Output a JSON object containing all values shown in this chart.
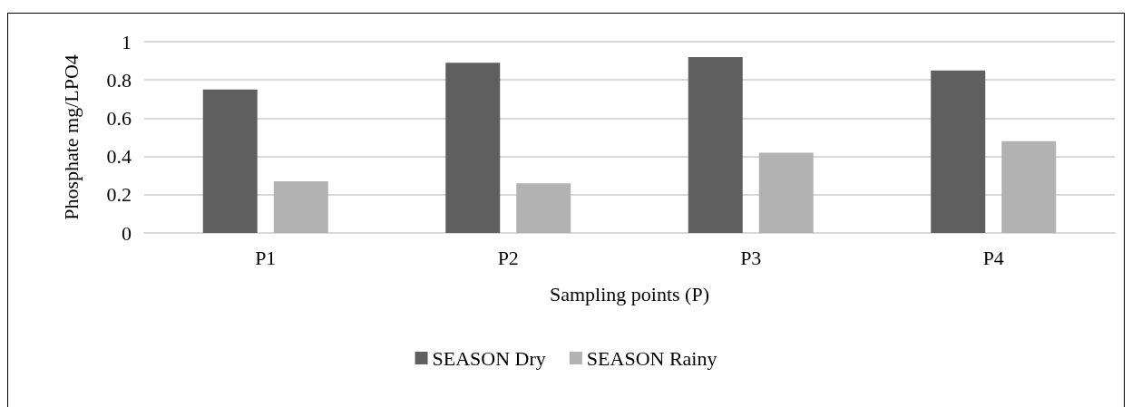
{
  "chart_data": {
    "type": "bar",
    "xlabel": "Sampling points (P)",
    "ylabel": "Phosphate mg/LPO4",
    "categories": [
      "P1",
      "P2",
      "P3",
      "P4"
    ],
    "series": [
      {
        "name": "SEASON Dry",
        "color": "#5f5f5f",
        "values": [
          0.75,
          0.89,
          0.92,
          0.85
        ]
      },
      {
        "name": "SEASON Rainy",
        "color": "#b2b2b2",
        "values": [
          0.27,
          0.26,
          0.42,
          0.48
        ]
      }
    ],
    "ylim": [
      0,
      1
    ],
    "yticks": [
      0,
      0.2,
      0.4,
      0.6,
      0.8,
      1
    ],
    "grid": "y",
    "legend": "bottom"
  }
}
